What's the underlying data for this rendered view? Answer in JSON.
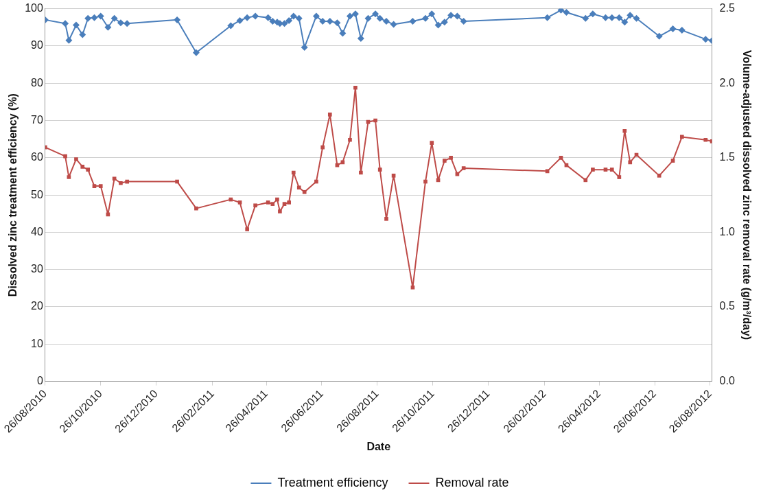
{
  "chart_data": {
    "type": "line",
    "xlabel": "Date",
    "ylabel": "Dissolved zinc treatment efficiency (%)",
    "y2label": "Volume-adjusted dissolved zinc removal rate (g/m³/day)",
    "x": [
      "2010-08-26",
      "2010-09-17",
      "2010-09-21",
      "2010-09-29",
      "2010-10-06",
      "2010-10-12",
      "2010-10-19",
      "2010-10-26",
      "2010-11-03",
      "2010-11-10",
      "2010-11-17",
      "2010-11-24",
      "2011-01-18",
      "2011-02-08",
      "2011-03-18",
      "2011-03-28",
      "2011-04-05",
      "2011-04-14",
      "2011-04-28",
      "2011-05-03",
      "2011-05-08",
      "2011-05-11",
      "2011-05-16",
      "2011-05-21",
      "2011-05-26",
      "2011-06-01",
      "2011-06-07",
      "2011-06-20",
      "2011-06-27",
      "2011-07-05",
      "2011-07-13",
      "2011-07-19",
      "2011-07-27",
      "2011-08-02",
      "2011-08-08",
      "2011-08-16",
      "2011-08-24",
      "2011-08-29",
      "2011-09-05",
      "2011-09-13",
      "2011-10-04",
      "2011-10-18",
      "2011-10-25",
      "2011-11-01",
      "2011-11-08",
      "2011-11-15",
      "2011-11-22",
      "2011-11-29",
      "2012-02-29",
      "2012-03-15",
      "2012-03-21",
      "2012-04-11",
      "2012-04-19",
      "2012-05-03",
      "2012-05-10",
      "2012-05-18",
      "2012-05-24",
      "2012-05-30",
      "2012-06-06",
      "2012-07-01",
      "2012-07-16",
      "2012-07-26",
      "2012-08-21",
      "2012-08-28"
    ],
    "series": [
      {
        "name": "Treatment efficiency",
        "color": "#4a7ebb",
        "marker": "diamond",
        "values": [
          97.0,
          96.0,
          91.5,
          95.6,
          93.0,
          97.4,
          97.6,
          98.0,
          95.0,
          97.4,
          96.2,
          96.0,
          97.0,
          88.2,
          95.4,
          96.8,
          97.6,
          98.0,
          97.6,
          96.6,
          96.4,
          96.0,
          96.0,
          96.8,
          98.0,
          97.4,
          89.6,
          98.0,
          96.6,
          96.6,
          96.2,
          93.4,
          98.0,
          98.6,
          92.0,
          97.4,
          98.6,
          97.4,
          96.6,
          95.8,
          96.6,
          97.4,
          98.6,
          95.6,
          96.4,
          98.2,
          98.0,
          96.6,
          97.6,
          99.6,
          99.0,
          97.4,
          98.6,
          97.6,
          97.6,
          97.6,
          96.4,
          98.2,
          97.4,
          92.6,
          94.6,
          94.2,
          91.8,
          91.4
        ]
      },
      {
        "name": "Removal rate",
        "color": "#be4b48",
        "marker": "square",
        "axis": "y2",
        "values": [
          1.57,
          1.51,
          1.37,
          1.49,
          1.44,
          1.42,
          1.31,
          1.31,
          1.12,
          1.36,
          1.33,
          1.34,
          1.34,
          1.16,
          1.22,
          1.2,
          1.02,
          1.18,
          1.2,
          1.19,
          1.22,
          1.14,
          1.19,
          1.2,
          1.4,
          1.3,
          1.27,
          1.34,
          1.57,
          1.79,
          1.45,
          1.47,
          1.62,
          1.97,
          1.4,
          1.74,
          1.75,
          1.42,
          1.09,
          1.38,
          0.63,
          1.34,
          1.6,
          1.35,
          1.48,
          1.5,
          1.39,
          1.43,
          1.41,
          1.5,
          1.45,
          1.35,
          1.42,
          1.42,
          1.42,
          1.37,
          1.68,
          1.47,
          1.52,
          1.38,
          1.48,
          1.64,
          1.62,
          1.61
        ]
      }
    ],
    "xlim": [
      "2010-08-26",
      "2012-08-28"
    ],
    "xticks": [
      {
        "value": "2010-08-26",
        "label": "26/08/2010"
      },
      {
        "value": "2010-10-26",
        "label": "26/10/2010"
      },
      {
        "value": "2010-12-26",
        "label": "26/12/2010"
      },
      {
        "value": "2011-02-26",
        "label": "26/02/2011"
      },
      {
        "value": "2011-04-26",
        "label": "26/04/2011"
      },
      {
        "value": "2011-06-26",
        "label": "26/06/2011"
      },
      {
        "value": "2011-08-26",
        "label": "26/08/2011"
      },
      {
        "value": "2011-10-26",
        "label": "26/10/2011"
      },
      {
        "value": "2011-12-26",
        "label": "26/12/2011"
      },
      {
        "value": "2012-02-26",
        "label": "26/02/2012"
      },
      {
        "value": "2012-04-26",
        "label": "26/04/2012"
      },
      {
        "value": "2012-06-26",
        "label": "26/06/2012"
      },
      {
        "value": "2012-08-26",
        "label": "26/08/2012"
      }
    ],
    "ylim": [
      0,
      100
    ],
    "yticks": [
      0,
      10,
      20,
      30,
      40,
      50,
      60,
      70,
      80,
      90,
      100
    ],
    "y2lim": [
      0,
      2.5
    ],
    "y2ticks": [
      {
        "value": 0,
        "label": "0.0"
      },
      0.5,
      {
        "value": 1,
        "label": "1.0"
      },
      1.5,
      {
        "value": 2,
        "label": "2.0"
      },
      2.5
    ],
    "grid": "y",
    "legend": "bottom",
    "line_style": "solid"
  }
}
